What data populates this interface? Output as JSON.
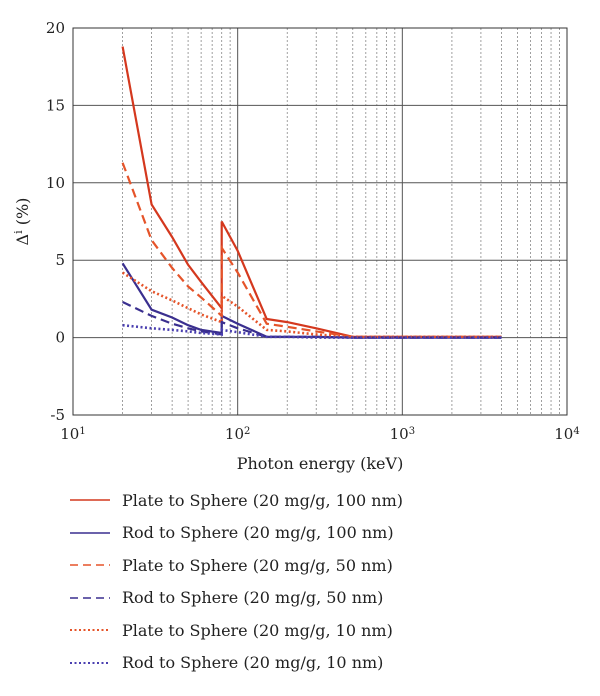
{
  "chart_data": {
    "type": "line",
    "xlabel": "Photon energy (keV)",
    "ylabel_main": "Δ",
    "ylabel_sup": "i",
    "ylabel_unit": " (%)",
    "xscale": "log",
    "xlim": [
      10,
      10000
    ],
    "ylim": [
      -5,
      20
    ],
    "yticks": [
      "-5",
      "0",
      "5",
      "10",
      "15",
      "20"
    ],
    "xticks": [
      {
        "value": 10,
        "base": "10",
        "exp": "1"
      },
      {
        "value": 100,
        "base": "10",
        "exp": "2"
      },
      {
        "value": 1000,
        "base": "10",
        "exp": "3"
      },
      {
        "value": 10000,
        "base": "10",
        "exp": "4"
      }
    ],
    "grid": true,
    "legend_position": "bottom",
    "series": [
      {
        "name": "Plate to Sphere (20 mg/g, 100 nm)",
        "color": "#d4381e",
        "style": "solid",
        "x": [
          20,
          30,
          40,
          50,
          60,
          80,
          80,
          100,
          150,
          200,
          300,
          500,
          600,
          1000,
          2000,
          4000
        ],
        "y": [
          18.8,
          8.6,
          6.5,
          4.7,
          3.6,
          1.9,
          7.5,
          5.6,
          1.2,
          1.0,
          0.6,
          0.05,
          0.05,
          0.05,
          0.05,
          0.05
        ]
      },
      {
        "name": "Rod to Sphere (20 mg/g, 100 nm)",
        "color": "#3a2f8f",
        "style": "solid",
        "x": [
          20,
          30,
          40,
          50,
          60,
          80,
          80,
          100,
          150,
          200,
          300,
          500,
          600,
          1000,
          2000,
          4000
        ],
        "y": [
          4.8,
          1.8,
          1.3,
          0.8,
          0.5,
          0.3,
          1.4,
          0.9,
          0.05,
          0.05,
          0.05,
          0.0,
          0.0,
          0.0,
          0.0,
          0.0
        ]
      },
      {
        "name": "Plate to Sphere (20 mg/g, 50 nm)",
        "color": "#e5542a",
        "style": "dashed",
        "x": [
          20,
          30,
          40,
          50,
          60,
          80,
          80,
          100,
          150,
          200,
          300,
          500,
          600,
          1000,
          2000,
          4000
        ],
        "y": [
          11.3,
          6.3,
          4.5,
          3.3,
          2.6,
          1.4,
          5.8,
          4.2,
          0.9,
          0.7,
          0.4,
          0.05,
          0.05,
          0.05,
          0.05,
          0.05
        ]
      },
      {
        "name": "Rod to Sphere (20 mg/g, 50 nm)",
        "color": "#3a2f8f",
        "style": "dashed",
        "x": [
          20,
          30,
          40,
          50,
          60,
          80,
          80,
          100,
          150,
          200,
          300,
          500,
          600,
          1000,
          2000,
          4000
        ],
        "y": [
          2.3,
          1.4,
          0.9,
          0.6,
          0.4,
          0.2,
          1.0,
          0.6,
          0.05,
          0.05,
          0.05,
          0.0,
          0.0,
          0.0,
          0.0,
          0.0
        ]
      },
      {
        "name": "Plate to Sphere (20 mg/g, 10 nm)",
        "color": "#e5542a",
        "style": "dotted",
        "x": [
          20,
          30,
          40,
          50,
          60,
          80,
          80,
          100,
          150,
          200,
          300,
          500,
          600,
          1000,
          2000,
          4000
        ],
        "y": [
          4.2,
          3.0,
          2.4,
          1.9,
          1.5,
          1.0,
          2.7,
          2.0,
          0.5,
          0.4,
          0.2,
          0.05,
          0.05,
          0.05,
          0.05,
          0.05
        ]
      },
      {
        "name": "Rod to Sphere (20 mg/g, 10 nm)",
        "color": "#4a3fb0",
        "style": "dotted",
        "x": [
          20,
          30,
          40,
          50,
          60,
          80,
          80,
          100,
          150,
          200,
          300,
          500,
          600,
          1000,
          2000,
          4000
        ],
        "y": [
          0.8,
          0.6,
          0.5,
          0.4,
          0.3,
          0.2,
          0.5,
          0.35,
          0.05,
          0.05,
          0.0,
          0.0,
          0.0,
          0.0,
          0.0,
          0.0
        ]
      }
    ]
  }
}
